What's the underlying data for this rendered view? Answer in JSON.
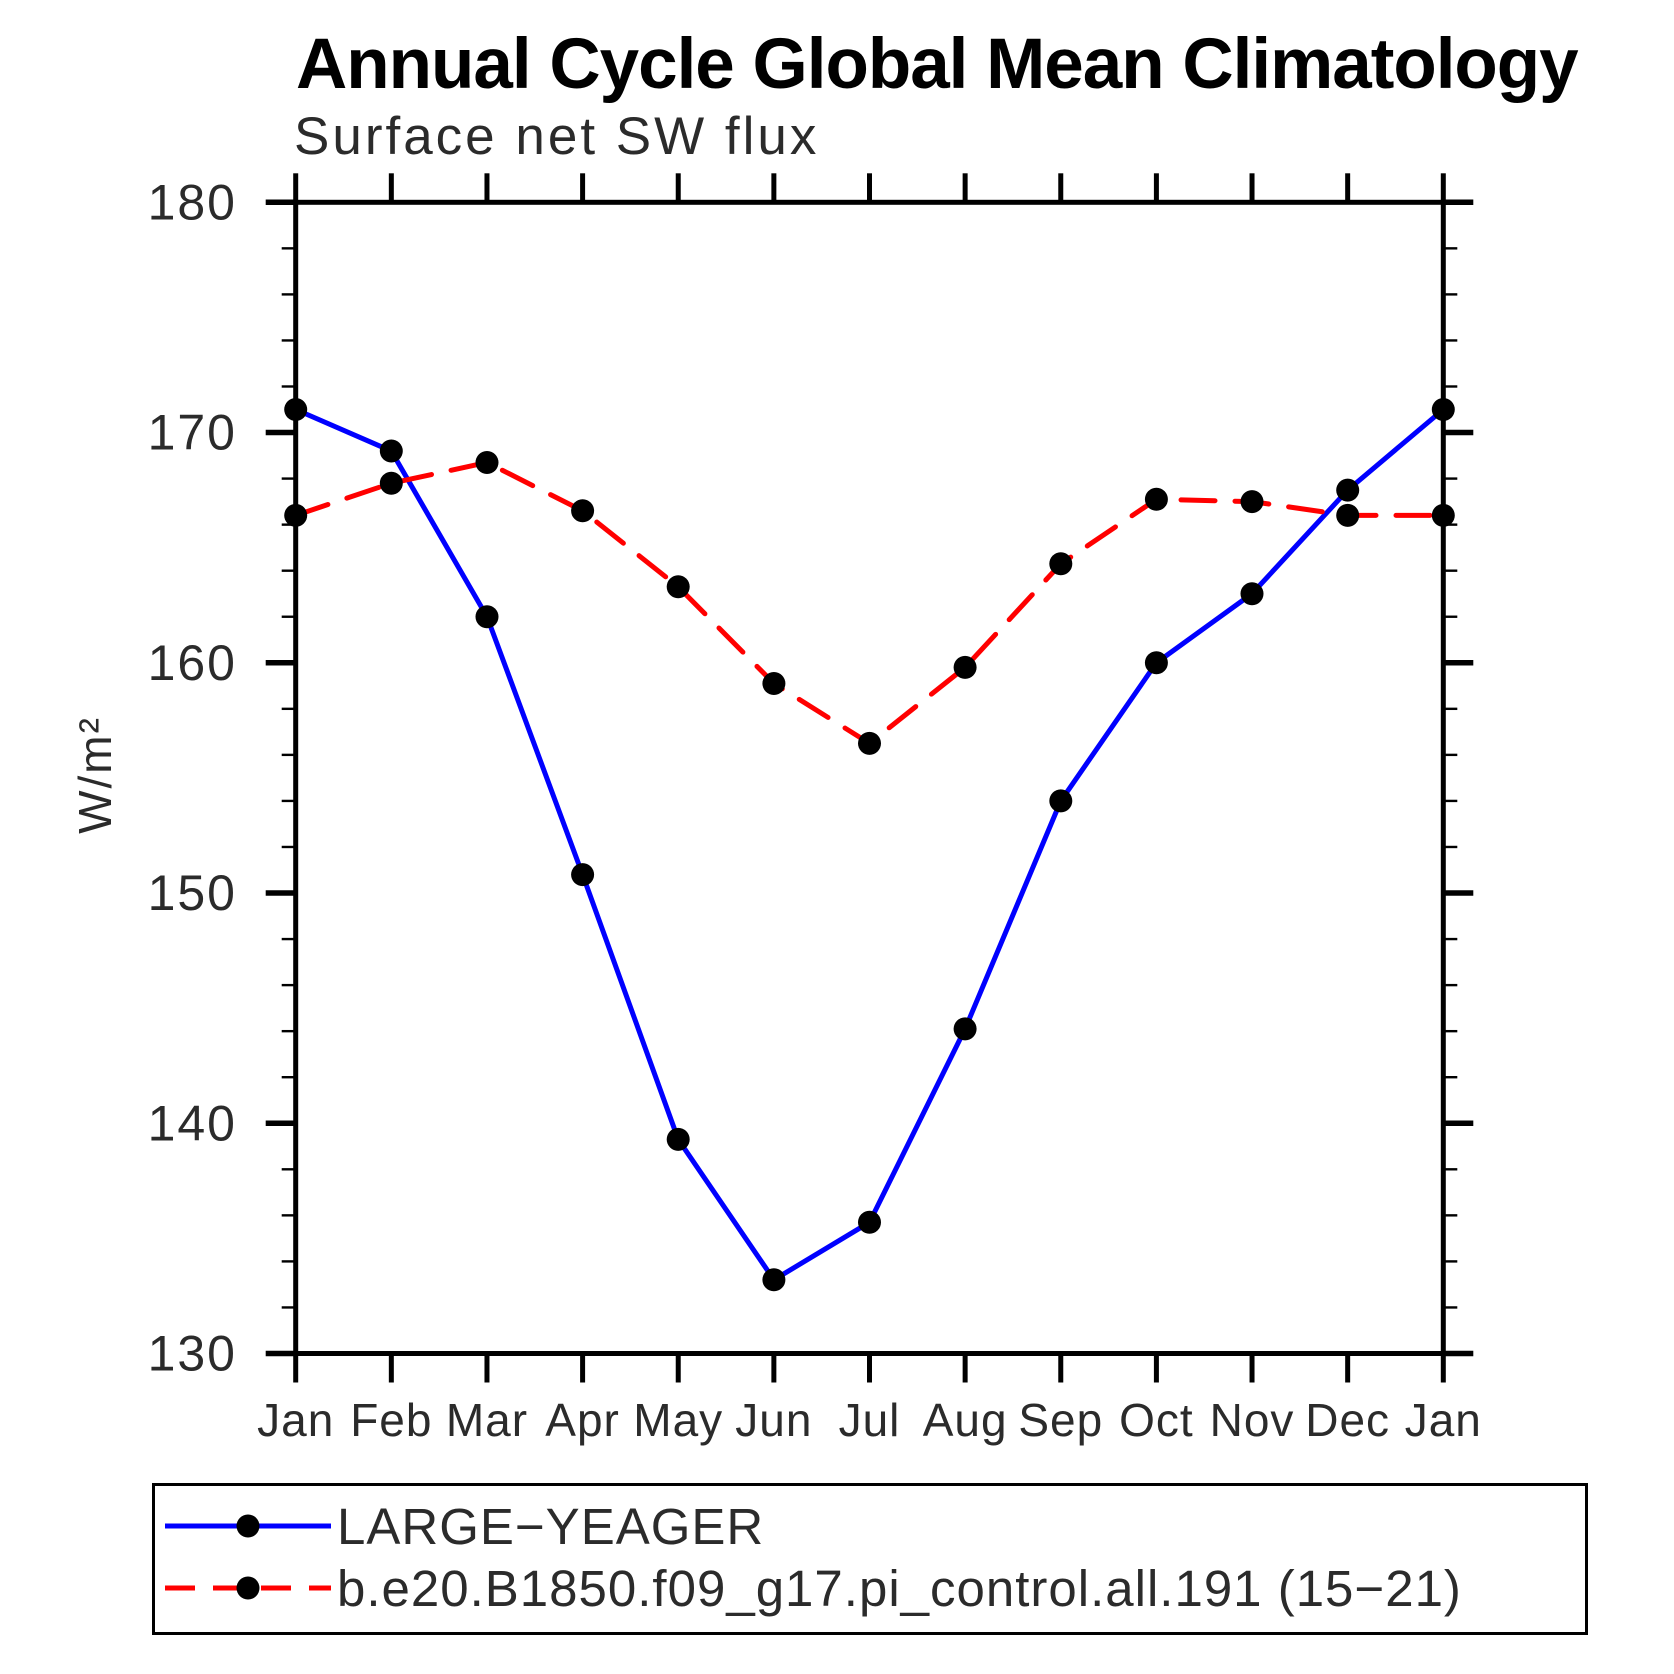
{
  "title": "Annual Cycle Global Mean Climatology",
  "subtitle": "Surface net SW flux",
  "y_axis": {
    "label": "W/m²",
    "major_ticks": [
      130,
      140,
      150,
      160,
      170,
      180
    ],
    "minor_step": 2
  },
  "chart_data": {
    "type": "line",
    "title": "Annual Cycle Global Mean Climatology",
    "subtitle": "Surface net SW flux",
    "ylabel": "W/m²",
    "ylim": [
      130,
      180
    ],
    "y_major_ticks": [
      130,
      140,
      150,
      160,
      170,
      180
    ],
    "y_minor_step": 2,
    "grid": false,
    "legend_position": "bottom",
    "categories": [
      "Jan",
      "Feb",
      "Mar",
      "Apr",
      "May",
      "Jun",
      "Jul",
      "Aug",
      "Sep",
      "Oct",
      "Nov",
      "Dec",
      "Jan"
    ],
    "marker_color": "#000000",
    "series": [
      {
        "name": "LARGE-YEAGER",
        "color": "#0000ff",
        "line_style": "solid",
        "marker": "filled-circle",
        "values": [
          171.0,
          169.2,
          162.0,
          150.8,
          139.3,
          133.2,
          135.7,
          144.1,
          154.0,
          160.0,
          163.0,
          167.5,
          171.0
        ]
      },
      {
        "name": "b.e20.B1850.f09_g17.pi_control.all.191 (15-21)",
        "color": "#ff0000",
        "line_style": "dashed",
        "marker": "filled-circle",
        "values": [
          166.4,
          167.8,
          168.7,
          166.6,
          163.3,
          159.1,
          156.5,
          159.8,
          164.3,
          167.1,
          167.0,
          166.4,
          166.4
        ]
      }
    ]
  },
  "legend": {
    "entries": [
      {
        "label": "LARGE−YEAGER"
      },
      {
        "label": "b.e20.B1850.f09_g17.pi_control.all.191 (15−21)"
      }
    ]
  }
}
